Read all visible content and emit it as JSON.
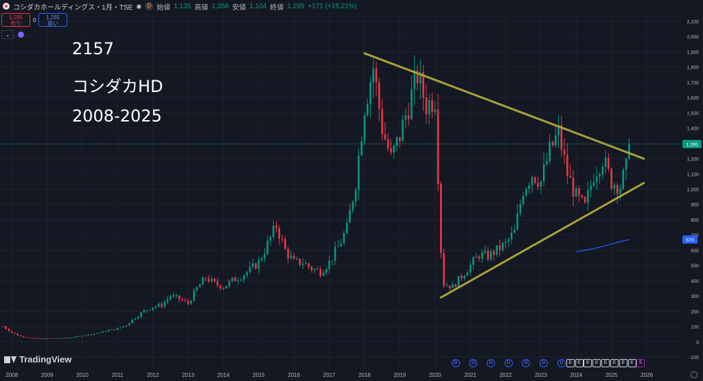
{
  "header": {
    "symbol_title": "コシダカホールディングス・1月・TSE",
    "data_badge": "D",
    "open_label": "始値",
    "open": "1,135",
    "high_label": "高値",
    "high": "1,358",
    "low_label": "安値",
    "low": "1,104",
    "close_label": "終値",
    "close": "1,295",
    "change": "+171 (+15.21%)"
  },
  "trade": {
    "sell_price": "1,295",
    "sell_label": "売り",
    "spread": "0",
    "buy_price": "1,295",
    "buy_label": "買い"
  },
  "annotations": {
    "code": "2157",
    "name": "コシダカHD",
    "period": "2008-2025"
  },
  "brand": {
    "logo_text": "TradingView"
  },
  "colors": {
    "background": "#141823",
    "up": "#089981",
    "down": "#f23645",
    "trendline": "#a8a23a",
    "ma": "#2962ff",
    "grid": "#1f2330"
  },
  "chart_data": {
    "type": "candlestick",
    "title": "コシダカHD",
    "y_scale": "linear",
    "ylim": [
      -100,
      2100
    ],
    "y_ticks": [
      -100,
      0,
      100,
      200,
      300,
      400,
      500,
      600,
      700,
      800,
      900,
      1000,
      1100,
      1200,
      1300,
      1400,
      1500,
      1600,
      1700,
      1800,
      1900,
      2000,
      2100
    ],
    "x_ticks": [
      "2008",
      "2009",
      "2010",
      "2011",
      "2012",
      "2013",
      "2014",
      "2015",
      "2016",
      "2017",
      "2018",
      "2019",
      "2020",
      "2021",
      "2022",
      "2023",
      "2024",
      "2025",
      "2026"
    ],
    "xlim": [
      "2007-09",
      "2026-08"
    ],
    "last_price": 1295,
    "last_price_label": "1,295",
    "ma_value": 670,
    "ma_label": "670",
    "grid": true,
    "monthly_close": [
      [
        "2007-10",
        100
      ],
      [
        "2008-01",
        60
      ],
      [
        "2008-04",
        35
      ],
      [
        "2008-07",
        25
      ],
      [
        "2008-10",
        20
      ],
      [
        "2009-01",
        22
      ],
      [
        "2009-04",
        22
      ],
      [
        "2009-07",
        25
      ],
      [
        "2009-10",
        30
      ],
      [
        "2010-01",
        40
      ],
      [
        "2010-04",
        50
      ],
      [
        "2010-07",
        60
      ],
      [
        "2010-10",
        75
      ],
      [
        "2011-01",
        85
      ],
      [
        "2011-04",
        110
      ],
      [
        "2011-07",
        160
      ],
      [
        "2011-10",
        200
      ],
      [
        "2012-01",
        230
      ],
      [
        "2012-04",
        240
      ],
      [
        "2012-07",
        300
      ],
      [
        "2012-10",
        280
      ],
      [
        "2013-01",
        250
      ],
      [
        "2013-04",
        350
      ],
      [
        "2013-07",
        420
      ],
      [
        "2013-10",
        380
      ],
      [
        "2014-01",
        360
      ],
      [
        "2014-04",
        400
      ],
      [
        "2014-07",
        430
      ],
      [
        "2014-10",
        470
      ],
      [
        "2015-01",
        520
      ],
      [
        "2015-04",
        640
      ],
      [
        "2015-07",
        760
      ],
      [
        "2015-10",
        600
      ],
      [
        "2016-01",
        520
      ],
      [
        "2016-04",
        520
      ],
      [
        "2016-07",
        480
      ],
      [
        "2016-10",
        460
      ],
      [
        "2017-01",
        520
      ],
      [
        "2017-04",
        620
      ],
      [
        "2017-07",
        740
      ],
      [
        "2017-10",
        1050
      ],
      [
        "2018-01",
        1550
      ],
      [
        "2018-04",
        1800
      ],
      [
        "2018-07",
        1400
      ],
      [
        "2018-10",
        1200
      ],
      [
        "2019-01",
        1350
      ],
      [
        "2019-04",
        1550
      ],
      [
        "2019-07",
        1750
      ],
      [
        "2019-10",
        1550
      ],
      [
        "2020-01",
        1600
      ],
      [
        "2020-03",
        600
      ],
      [
        "2020-04",
        380
      ],
      [
        "2020-07",
        360
      ],
      [
        "2020-10",
        430
      ],
      [
        "2021-01",
        500
      ],
      [
        "2021-04",
        570
      ],
      [
        "2021-07",
        560
      ],
      [
        "2021-10",
        600
      ],
      [
        "2022-01",
        640
      ],
      [
        "2022-04",
        720
      ],
      [
        "2022-07",
        1000
      ],
      [
        "2022-10",
        1100
      ],
      [
        "2023-01",
        1050
      ],
      [
        "2023-04",
        1250
      ],
      [
        "2023-07",
        1370
      ],
      [
        "2023-10",
        1100
      ],
      [
        "2024-01",
        950
      ],
      [
        "2024-04",
        880
      ],
      [
        "2024-07",
        1100
      ],
      [
        "2024-10",
        1200
      ],
      [
        "2025-01",
        1050
      ],
      [
        "2025-04",
        1020
      ],
      [
        "2025-06",
        1135
      ],
      [
        "2025-07",
        1295
      ]
    ],
    "trendlines": [
      {
        "name": "upper",
        "from": [
          "2018-01",
          1890
        ],
        "to": [
          "2025-12",
          1200
        ]
      },
      {
        "name": "lower",
        "from": [
          "2020-03",
          290
        ],
        "to": [
          "2025-12",
          1040
        ]
      }
    ],
    "moving_average": [
      [
        "2024-01",
        590
      ],
      [
        "2024-07",
        610
      ],
      [
        "2025-01",
        640
      ],
      [
        "2025-07",
        670
      ]
    ],
    "events": {
      "dividend_label": "D",
      "earnings_label": "E",
      "dividends": [
        "2020-08",
        "2021-02",
        "2021-08",
        "2022-02",
        "2022-08",
        "2023-02",
        "2023-08"
      ],
      "earnings": [
        "2023-11",
        "2024-02",
        "2024-05",
        "2024-08",
        "2024-11",
        "2025-02",
        "2025-05",
        "2025-08",
        "2025-11"
      ]
    }
  }
}
